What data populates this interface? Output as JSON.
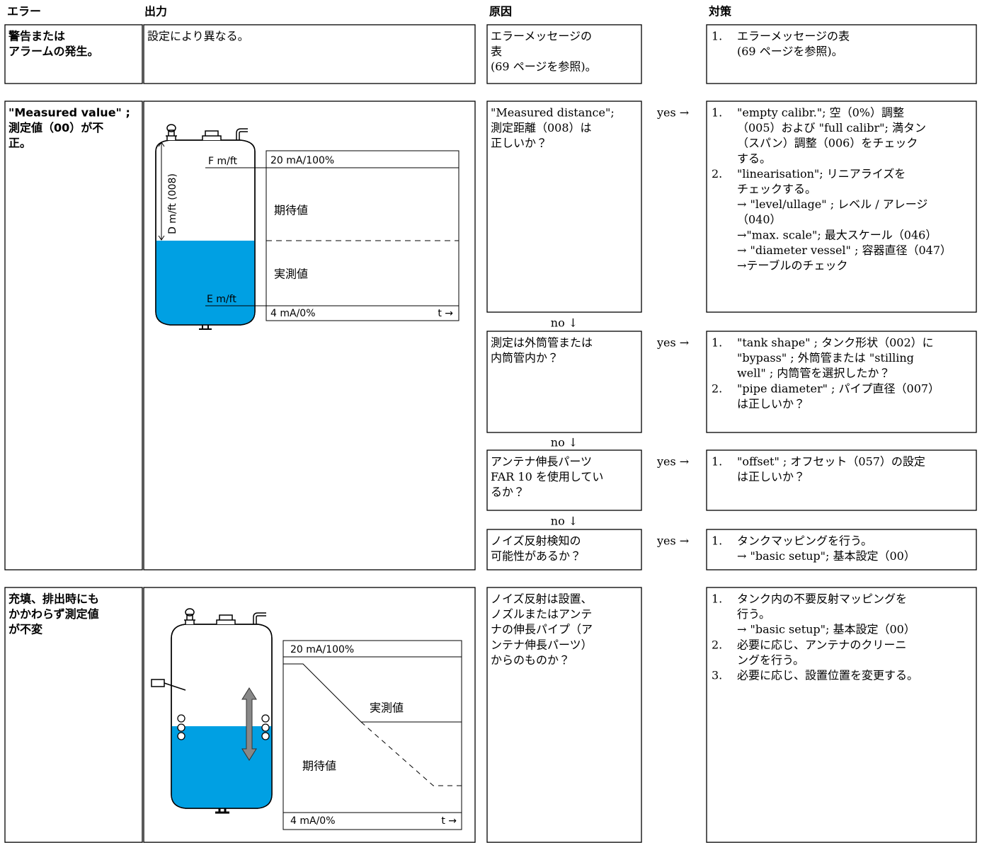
{
  "headers": {
    "error": "エラー",
    "output": "出力",
    "cause": "原因",
    "remedy": "対策"
  },
  "rows": [
    {
      "error": [
        "警告または",
        "アラームの発生。"
      ],
      "output": [
        "設定により異なる。"
      ],
      "causes": [
        {
          "lines": [
            "エラーメッセージの",
            "表",
            "(69 ページを参照)。"
          ],
          "remedies": [
            {
              "num": "1.",
              "lines": [
                "エラーメッセージの表",
                "(69 ページを参照)。"
              ]
            }
          ]
        }
      ]
    },
    {
      "error": [
        "\"Measured value\" ;",
        "測定値（00）が不",
        "正。"
      ],
      "diagram": {
        "top": "20 mA/100%",
        "bottom": "4 mA/0%",
        "time": "t →",
        "expected": "期待値",
        "measured": "実測値",
        "f": "F m/ft",
        "e": "E m/ft",
        "d": "D m/ft (008)"
      },
      "causes": [
        {
          "lines": [
            "\"Measured distance\";",
            "測定距離（008）は",
            "正しいか？"
          ],
          "yes": "yes →",
          "no": "no ↓",
          "remedies": [
            {
              "num": "1.",
              "lines": [
                "\"empty calibr.\"; 空（0%）調整",
                "（005）および \"full calibr\"; 満タン",
                "（スパン）調整（006）をチェック",
                "する。"
              ]
            },
            {
              "num": "2.",
              "lines": [
                "\"linearisation\"; リニアライズを",
                "チェックする。",
                "→ \"level/ullage\" ; レベル / アレージ",
                "（040）",
                "→\"max. scale\"; 最大スケール（046）",
                "→ \"diameter vessel\" ; 容器直径（047）",
                "→テーブルのチェック"
              ]
            }
          ]
        },
        {
          "lines": [
            "測定は外筒管または",
            "内筒管内か？"
          ],
          "yes": "yes →",
          "no": "no ↓",
          "remedies": [
            {
              "num": "1.",
              "lines": [
                "\"tank shape\" ; タンク形状（002）に",
                "\"bypass\" ; 外筒管または \"stilling",
                "well\" ; 内筒管を選択したか？"
              ]
            },
            {
              "num": "2.",
              "lines": [
                "\"pipe diameter\" ; パイプ直径（007）",
                "は正しいか？"
              ]
            }
          ]
        },
        {
          "lines": [
            "アンテナ伸長パーツ",
            "FAR 10 を使用してい",
            "るか？"
          ],
          "yes": "yes →",
          "no": "no ↓",
          "remedies": [
            {
              "num": "1.",
              "lines": [
                "\"offset\" ; オフセット（057）の設定",
                "は正しいか？"
              ]
            }
          ]
        },
        {
          "lines": [
            "ノイズ反射検知の",
            "可能性があるか？"
          ],
          "yes": "yes →",
          "remedies": [
            {
              "num": "1.",
              "lines": [
                "タンクマッピングを行う。",
                "→ \"basic setup\"; 基本設定（00）"
              ]
            }
          ]
        }
      ]
    },
    {
      "error": [
        "充填、排出時にも",
        "かかわらず測定値",
        "が不変"
      ],
      "diagram": {
        "top": "20 mA/100%",
        "bottom": "4 mA/0%",
        "time": "t →",
        "expected": "期待値",
        "measured": "実測値"
      },
      "causes": [
        {
          "lines": [
            "ノイズ反射は設置、",
            "ノズルまたはアンテ",
            "ナの伸長パイプ（ア",
            "ンテナ伸長パーツ）",
            "からのものか？"
          ],
          "remedies": [
            {
              "num": "1.",
              "lines": [
                "タンク内の不要反射マッピングを",
                "行う。",
                "→ \"basic setup\"; 基本設定（00）"
              ]
            },
            {
              "num": "2.",
              "lines": [
                "必要に応じ、アンテナのクリーニ",
                "ングを行う。"
              ]
            },
            {
              "num": "3.",
              "lines": [
                "必要に応じ、設置位置を変更する。"
              ]
            }
          ]
        }
      ]
    }
  ]
}
